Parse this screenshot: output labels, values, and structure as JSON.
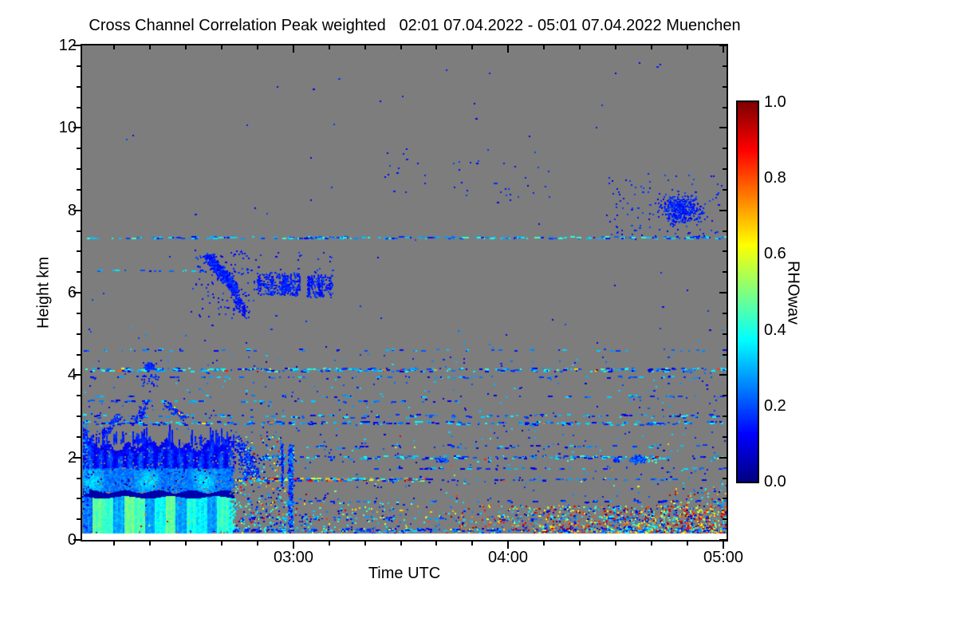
{
  "chart_data": {
    "type": "heatmap",
    "title": "Cross Channel Correlation Peak weighted",
    "subtitle": "02:01 07.04.2022 - 05:01 07.04.2022 Muenchen",
    "title_full": "Cross Channel Correlation Peak weighted   02:01 07.04.2022 - 05:01 07.04.2022 Muenchen",
    "station": "Muenchen",
    "time_start": "02:01 07.04.2022",
    "time_end": "05:01 07.04.2022",
    "xlabel": "Time UTC",
    "ylabel": "Height km",
    "x_range_hours_utc": [
      2.0167,
      5.0167
    ],
    "x_ticks": [
      {
        "hour": 3,
        "label": "03:00"
      },
      {
        "hour": 4,
        "label": "04:00"
      },
      {
        "hour": 5,
        "label": "05:00"
      }
    ],
    "x_minor_tick_minutes": 10,
    "y_range_km": [
      0,
      12
    ],
    "y_ticks": [
      {
        "km": 0,
        "label": "0"
      },
      {
        "km": 2,
        "label": "2"
      },
      {
        "km": 4,
        "label": "4"
      },
      {
        "km": 6,
        "label": "6"
      },
      {
        "km": 8,
        "label": "8"
      },
      {
        "km": 10,
        "label": "10"
      },
      {
        "km": 12,
        "label": "12"
      }
    ],
    "y_minor_tick_km": 0.5,
    "colormap": "jet",
    "no_data_color": "#7d7d7d",
    "below_range_color": "#ffffff",
    "frame_color": "#000000",
    "colorbar": {
      "label": "RHOwav",
      "min": 0.0,
      "max": 1.0,
      "tick_labels": [
        {
          "value": 0.0,
          "label": "0.0"
        },
        {
          "value": 0.2,
          "label": "0.2"
        },
        {
          "value": 0.4,
          "label": "0.4"
        },
        {
          "value": 0.6,
          "label": "0.6"
        },
        {
          "value": 0.8,
          "label": "0.8"
        },
        {
          "value": 1.0,
          "label": "1.0"
        }
      ],
      "minor_tick_step": 0.04
    },
    "features": [
      {
        "kind": "specks",
        "t": [
          2.02,
          5.015
        ],
        "h": [
          0.16,
          4.5
        ],
        "n": 560,
        "v": [
          0.06,
          0.35
        ],
        "note": "sparse background echo pepper"
      },
      {
        "kind": "specks",
        "t": [
          2.02,
          5.015
        ],
        "h": [
          4.5,
          5.3
        ],
        "n": 30,
        "v": [
          0.08,
          0.3
        ]
      },
      {
        "kind": "specks",
        "t": [
          2.05,
          5.01
        ],
        "h": [
          5.3,
          11.6
        ],
        "n": 55,
        "v": [
          0.1,
          0.2
        ]
      },
      {
        "kind": "hline",
        "km": 7.35,
        "t": [
          2.02,
          5.01
        ],
        "n": 220,
        "v": [
          0.12,
          0.45
        ],
        "dy": 1,
        "note": "dashed echo layer"
      },
      {
        "kind": "hline",
        "km": 6.55,
        "t": [
          2.03,
          2.85
        ],
        "n": 20,
        "v": [
          0.12,
          0.4
        ],
        "dy": 1
      },
      {
        "kind": "hline",
        "km": 4.62,
        "t": [
          2.02,
          5.01
        ],
        "n": 55,
        "v": [
          0.1,
          0.35
        ],
        "dy": 1
      },
      {
        "kind": "hline",
        "km": 4.14,
        "t": [
          2.02,
          5.01
        ],
        "n": 280,
        "v": [
          0.08,
          0.45
        ],
        "warm": 0.04,
        "dy": 2
      },
      {
        "kind": "hline",
        "km": 3.97,
        "t": [
          2.02,
          5.01
        ],
        "n": 60,
        "v": [
          0.08,
          0.35
        ],
        "dy": 1
      },
      {
        "kind": "hline",
        "km": 3.5,
        "t": [
          2.02,
          5.01
        ],
        "n": 48,
        "v": [
          0.08,
          0.35
        ],
        "dy": 1
      },
      {
        "kind": "hline",
        "km": 3.38,
        "t": [
          2.02,
          3.8
        ],
        "n": 50,
        "v": [
          0.08,
          0.35
        ],
        "dy": 1
      },
      {
        "kind": "hline",
        "km": 3.02,
        "t": [
          2.02,
          5.01
        ],
        "n": 120,
        "v": [
          0.08,
          0.4
        ],
        "dy": 2
      },
      {
        "kind": "hline",
        "km": 2.85,
        "t": [
          2.02,
          5.01
        ],
        "n": 230,
        "v": [
          0.08,
          0.4
        ],
        "warm": 0.02,
        "dy": 2
      },
      {
        "kind": "hline",
        "km": 2.28,
        "t": [
          2.75,
          5.01
        ],
        "n": 60,
        "v": [
          0.08,
          0.35
        ],
        "dy": 2
      },
      {
        "kind": "hline",
        "km": 2.02,
        "t": [
          2.72,
          5.01
        ],
        "n": 160,
        "v": [
          0.08,
          0.45
        ],
        "warm": 0.03,
        "dy": 2
      },
      {
        "kind": "hline",
        "km": 1.75,
        "t": [
          3.3,
          5.01
        ],
        "n": 45,
        "v": [
          0.08,
          0.35
        ],
        "dy": 1
      },
      {
        "kind": "hline",
        "km": 1.48,
        "t": [
          2.73,
          3.62
        ],
        "n": 170,
        "v": [
          0.1,
          0.45
        ],
        "warm": 0.3,
        "dy": 2,
        "note": "mixed warm/cool melting-layer line"
      },
      {
        "kind": "hline",
        "km": 1.48,
        "t": [
          3.62,
          5.01
        ],
        "n": 40,
        "v": [
          0.08,
          0.3
        ],
        "dy": 1
      },
      {
        "kind": "hline",
        "km": 0.95,
        "t": [
          2.75,
          5.01
        ],
        "n": 45,
        "v": [
          0.08,
          0.35
        ],
        "dy": 1
      },
      {
        "kind": "hline",
        "km": 0.55,
        "t": [
          2.75,
          5.01
        ],
        "n": 70,
        "v": [
          0.08,
          0.4
        ],
        "warm": 0.1,
        "dy": 2
      },
      {
        "kind": "hline",
        "km": 0.25,
        "t": [
          2.02,
          5.01
        ],
        "n": 340,
        "v": [
          0.08,
          0.35
        ],
        "warm": 0.03,
        "dy": 2,
        "note": "dense near-surface line"
      },
      {
        "kind": "diag",
        "a": [
          2.115,
          2.55
        ],
        "b": [
          2.185,
          3.0
        ],
        "n": 80,
        "v": [
          0.12,
          0.2
        ],
        "sp": 0.06
      },
      {
        "kind": "diag",
        "a": [
          2.26,
          2.9
        ],
        "b": [
          2.32,
          3.35
        ],
        "n": 70,
        "v": [
          0.12,
          0.2
        ],
        "sp": 0.06
      },
      {
        "kind": "cluster",
        "c": [
          2.325,
          4.22
        ],
        "s": [
          0.022,
          0.09
        ],
        "n": 140,
        "v": [
          0.12,
          0.2
        ]
      },
      {
        "kind": "specks",
        "t": [
          2.29,
          2.37
        ],
        "h": [
          3.75,
          4.05
        ],
        "n": 25,
        "v": [
          0.12,
          0.2
        ]
      },
      {
        "kind": "diag",
        "a": [
          2.41,
          3.3
        ],
        "b": [
          2.49,
          2.98
        ],
        "n": 90,
        "v": [
          0.12,
          0.2
        ],
        "sp": 0.07
      },
      {
        "kind": "specks",
        "t": [
          2.42,
          2.48
        ],
        "h": [
          2.98,
          3.3
        ],
        "n": 4,
        "v": [
          0.58,
          0.75
        ]
      },
      {
        "kind": "specks",
        "t": [
          2.54,
          2.65
        ],
        "h": [
          2.05,
          2.5
        ],
        "n": 55,
        "v": [
          0.1,
          0.2
        ]
      },
      {
        "kind": "diag",
        "a": [
          2.6,
          6.88
        ],
        "b": [
          2.73,
          6.08
        ],
        "n": 650,
        "v": [
          0.1,
          0.2
        ],
        "sp": 0.13,
        "note": "virga fall streak near 6.5 km"
      },
      {
        "kind": "diag",
        "a": [
          2.725,
          6.0
        ],
        "b": [
          2.775,
          5.5
        ],
        "n": 110,
        "v": [
          0.1,
          0.18
        ],
        "sp": 0.09
      },
      {
        "kind": "specks",
        "t": [
          2.52,
          2.82
        ],
        "h": [
          5.4,
          7.05
        ],
        "n": 120,
        "v": [
          0.1,
          0.2
        ]
      },
      {
        "kind": "strands",
        "t": [
          2.83,
          3.03
        ],
        "h": [
          5.95,
          6.5
        ],
        "ns": 9,
        "nd": 260,
        "v": [
          0.1,
          0.2
        ]
      },
      {
        "kind": "strands",
        "t": [
          3.06,
          3.18
        ],
        "h": [
          5.9,
          6.45
        ],
        "ns": 6,
        "nd": 120,
        "v": [
          0.1,
          0.2
        ]
      },
      {
        "kind": "specks",
        "t": [
          2.55,
          3.2
        ],
        "h": [
          6.5,
          7.0
        ],
        "n": 30,
        "v": [
          0.1,
          0.2
        ]
      },
      {
        "kind": "cluster",
        "c": [
          4.8,
          8.05
        ],
        "s": [
          0.09,
          0.33
        ],
        "n": 430,
        "v": [
          0.1,
          0.2
        ],
        "note": "cirrus speckle cluster 8 km"
      },
      {
        "kind": "specks",
        "t": [
          4.45,
          5.0
        ],
        "h": [
          7.3,
          8.9
        ],
        "n": 120,
        "v": [
          0.1,
          0.2
        ]
      },
      {
        "kind": "specks",
        "t": [
          3.4,
          4.2
        ],
        "h": [
          8.2,
          9.5
        ],
        "n": 40,
        "v": [
          0.1,
          0.2
        ]
      },
      {
        "kind": "vcol",
        "t": 2.985,
        "s": 0.009,
        "h": [
          0.35,
          2.32
        ],
        "n": 760,
        "v": [
          0.08,
          0.3
        ],
        "note": "03:00 shower column"
      },
      {
        "kind": "vcol",
        "t": 2.945,
        "s": 0.004,
        "h": [
          1.3,
          2.35
        ],
        "n": 90,
        "v": [
          0.1,
          0.22
        ]
      },
      {
        "kind": "diag",
        "a": [
          2.735,
          2.5
        ],
        "b": [
          2.78,
          1.55
        ],
        "n": 90,
        "v": [
          0.1,
          0.2
        ],
        "sp": 0.05
      },
      {
        "kind": "diag",
        "a": [
          2.765,
          2.35
        ],
        "b": [
          2.805,
          1.6
        ],
        "n": 70,
        "v": [
          0.1,
          0.2
        ],
        "sp": 0.05
      },
      {
        "kind": "diag",
        "a": [
          2.795,
          2.1
        ],
        "b": [
          2.825,
          1.5
        ],
        "n": 60,
        "v": [
          0.1,
          0.2
        ],
        "sp": 0.04
      },
      {
        "kind": "cluster",
        "c": [
          4.6,
          1.97
        ],
        "s": [
          0.035,
          0.08
        ],
        "n": 240,
        "v": [
          0.1,
          0.28
        ],
        "note": "small blue cloud 04:36"
      },
      {
        "kind": "specks",
        "t": [
          4.63,
          4.69
        ],
        "h": [
          1.85,
          2.05
        ],
        "n": 12,
        "v": [
          0.35,
          0.5
        ]
      },
      {
        "kind": "cluster",
        "c": [
          4.5,
          1.95
        ],
        "s": [
          0.015,
          0.05
        ],
        "n": 40,
        "v": [
          0.1,
          0.22
        ]
      },
      {
        "kind": "cluster",
        "c": [
          3.69,
          1.95
        ],
        "s": [
          0.025,
          0.06
        ],
        "n": 60,
        "v": [
          0.1,
          0.28
        ]
      },
      {
        "kind": "rainblob",
        "t": [
          2.022,
          2.725
        ],
        "h": [
          0.16,
          2.5
        ],
        "band": [
          1.03,
          1.17
        ],
        "note": "low-level precipitation echo 02:01-02:44, bright cyan below dark band"
      },
      {
        "kind": "specks",
        "t": [
          2.017,
          2.045
        ],
        "h": [
          0.2,
          2.9
        ],
        "n": 150,
        "v": [
          0.1,
          0.32
        ]
      },
      {
        "kind": "noise",
        "t": [
          2.72,
          3.0
        ],
        "h": [
          0.16,
          2.55
        ],
        "n": 300,
        "warm": 0.15
      },
      {
        "kind": "noise",
        "t": [
          2.74,
          3.55
        ],
        "h": [
          0.16,
          0.95
        ],
        "n": 240,
        "warm": 0.18
      },
      {
        "kind": "noise",
        "t": [
          3.55,
          5.015
        ],
        "h": [
          0.16,
          0.85
        ],
        "n": 1250,
        "warm": 0.5,
        "biasR": true,
        "note": "boundary-layer clutter, mixed correlation values, densest at right"
      },
      {
        "kind": "noise",
        "t": [
          4.75,
          5.015
        ],
        "h": [
          0.85,
          1.4
        ],
        "n": 60,
        "warm": 0.35
      },
      {
        "kind": "noise",
        "t": [
          3.0,
          5.01
        ],
        "h": [
          1.0,
          2.6
        ],
        "n": 40,
        "warm": 0.25
      },
      {
        "kind": "noise",
        "t": [
          2.1,
          2.7
        ],
        "h": [
          0.3,
          1.0
        ],
        "n": 8,
        "warm": 0.85
      }
    ]
  }
}
